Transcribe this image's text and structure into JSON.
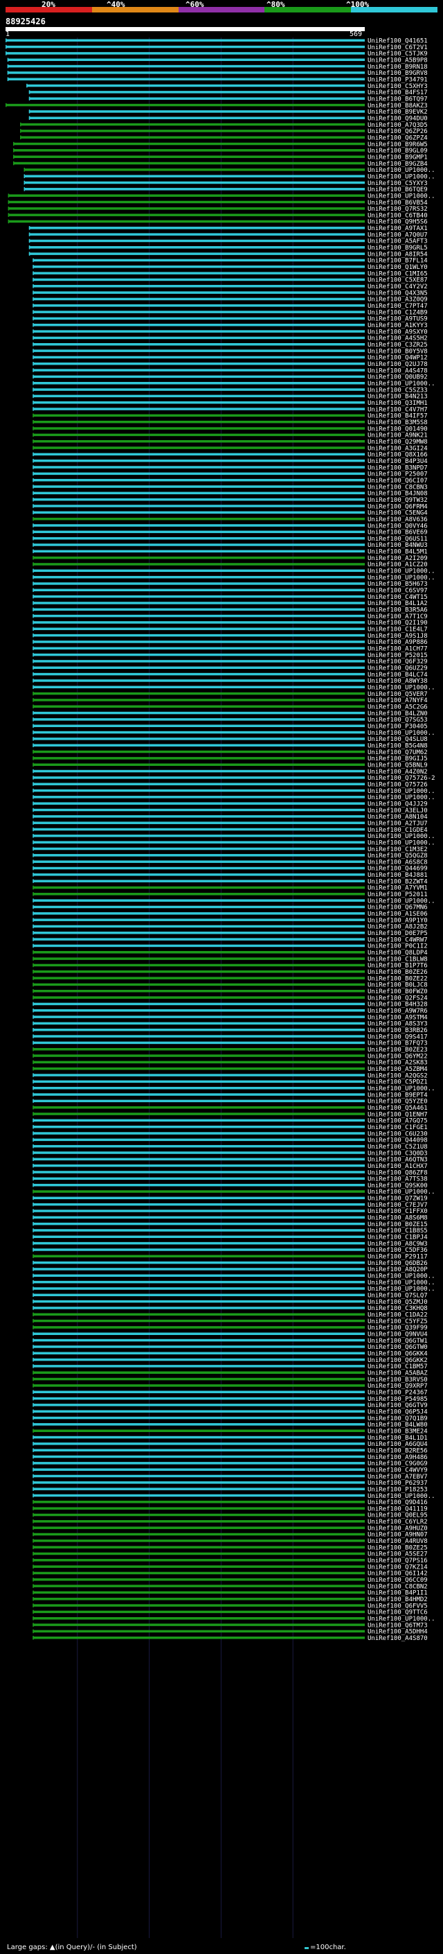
{
  "scale": {
    "labels": [
      "20%",
      "^40%",
      "^60%",
      "^80%",
      "^100%"
    ],
    "colors": [
      "#d82020",
      "#e08818",
      "#9030a8",
      "#1a9a1a",
      "#30c8d8"
    ]
  },
  "query": {
    "id": "88925426",
    "start": "1",
    "end": "569"
  },
  "footer": {
    "large_gaps": "Large gaps: ▲(in Query)/- (in Subject)",
    "legend": "=100char."
  },
  "chart_data": {
    "type": "alignment",
    "query_length": 569,
    "hits": [
      [
        "UniRef100_Q41651",
        1,
        1
      ],
      [
        "UniRef100_C6T2V1",
        1,
        1
      ],
      [
        "UniRef100_C5TJK9",
        1,
        1
      ],
      [
        "UniRef100_A5B9P8",
        4,
        1
      ],
      [
        "UniRef100_B9RN18",
        4,
        1
      ],
      [
        "UniRef100_B9GRV8",
        4,
        1
      ],
      [
        "UniRef100_P34791",
        4,
        1
      ],
      [
        "UniRef100_C5XHY3",
        34,
        1
      ],
      [
        "UniRef100_B4FS17",
        38,
        1
      ],
      [
        "UniRef100_B6TQ97",
        38,
        1
      ],
      [
        "UniRef100_B8AKZ3",
        1,
        0
      ],
      [
        "UniRef100_B9EVK2",
        38,
        1
      ],
      [
        "UniRef100_Q94DU0",
        38,
        1
      ],
      [
        "UniRef100_A7Q3D5",
        24,
        0
      ],
      [
        "UniRef100_Q6ZP26",
        24,
        0
      ],
      [
        "UniRef100_Q6ZPZ4",
        24,
        0
      ],
      [
        "UniRef100_B9R6W5",
        13,
        0
      ],
      [
        "UniRef100_B9GL09",
        13,
        0
      ],
      [
        "UniRef100_B9GMP1",
        13,
        0
      ],
      [
        "UniRef100_B9GZB4",
        13,
        0
      ],
      [
        "UniRef100_UP1000..",
        30,
        0
      ],
      [
        "UniRef100_UP1000..",
        30,
        1
      ],
      [
        "UniRef100_C5YXY3",
        30,
        1
      ],
      [
        "UniRef100_B6TQE9",
        30,
        1
      ],
      [
        "UniRef100_UP1000..",
        5,
        0
      ],
      [
        "UniRef100_B6VB54",
        5,
        0
      ],
      [
        "UniRef100_Q7RS32",
        5,
        0
      ],
      [
        "UniRef100_C6TB40",
        5,
        0
      ],
      [
        "UniRef100_Q9H5S6",
        5,
        0
      ],
      [
        "UniRef100_A9TAX1",
        38,
        1
      ],
      [
        "UniRef100_A7Q0U7",
        38,
        1
      ],
      [
        "UniRef100_A5AFT3",
        38,
        1
      ],
      [
        "UniRef100_B9GRL5",
        38,
        1
      ],
      [
        "UniRef100_A8IR54",
        38,
        1
      ],
      [
        "UniRef100_B7FL14",
        44,
        1
      ],
      [
        "UniRef100_Q1WLY0",
        44,
        1
      ],
      [
        "UniRef100_C1MI65",
        44,
        1
      ],
      [
        "UniRef100_C5XE87",
        44,
        1
      ],
      [
        "UniRef100_C4Y2V2",
        44,
        1
      ],
      [
        "UniRef100_Q4X3N5",
        44,
        1
      ],
      [
        "UniRef100_A3Z0Q9",
        44,
        1
      ],
      [
        "UniRef100_C7PT47",
        44,
        1
      ],
      [
        "UniRef100_C1Z4B9",
        44,
        1
      ],
      [
        "UniRef100_A9TUS9",
        44,
        1
      ],
      [
        "UniRef100_A1KYY3",
        44,
        1
      ],
      [
        "UniRef100_A9SXY0",
        44,
        1
      ],
      [
        "UniRef100_A4S5H2",
        44,
        1
      ],
      [
        "UniRef100_C3ZR25",
        44,
        1
      ],
      [
        "UniRef100_B0Y5V8",
        44,
        1
      ],
      [
        "UniRef100_Q4WP12",
        44,
        1
      ],
      [
        "UniRef100_Q2UJ78",
        44,
        1
      ],
      [
        "UniRef100_A4S478",
        44,
        1
      ],
      [
        "UniRef100_Q0UB92",
        44,
        1
      ],
      [
        "UniRef100_UP1000..",
        44,
        1
      ],
      [
        "UniRef100_C5SZ33",
        44,
        1
      ],
      [
        "UniRef100_B4N213",
        44,
        1
      ],
      [
        "UniRef100_Q3IMH1",
        44,
        1
      ],
      [
        "UniRef100_C4V7H7",
        44,
        1
      ],
      [
        "UniRef100_B4IF57",
        44,
        0
      ],
      [
        "UniRef100_B3M5S8",
        44,
        0
      ],
      [
        "UniRef100_Q01490",
        44,
        0
      ],
      [
        "UniRef100_A9NK21",
        44,
        0
      ],
      [
        "UniRef100_Q29MW8",
        44,
        0
      ],
      [
        "UniRef100_A3GI24",
        44,
        0
      ],
      [
        "UniRef100_Q8X166",
        44,
        1
      ],
      [
        "UniRef100_B4P3U4",
        44,
        1
      ],
      [
        "UniRef100_B3NPD7",
        44,
        1
      ],
      [
        "UniRef100_P25007",
        44,
        1
      ],
      [
        "UniRef100_Q6CI07",
        44,
        1
      ],
      [
        "UniRef100_C8CBN3",
        44,
        1
      ],
      [
        "UniRef100_B4JN08",
        44,
        1
      ],
      [
        "UniRef100_Q9TW32",
        44,
        1
      ],
      [
        "UniRef100_Q6FRM4",
        44,
        1
      ],
      [
        "UniRef100_C5ENG4",
        44,
        1
      ],
      [
        "UniRef100_A8V636",
        44,
        0
      ],
      [
        "UniRef100_Q0VY46",
        44,
        1
      ],
      [
        "UniRef100_B6VE69",
        44,
        1
      ],
      [
        "UniRef100_Q6US11",
        44,
        1
      ],
      [
        "UniRef100_B4NWU3",
        44,
        1
      ],
      [
        "UniRef100_B4L5M1",
        44,
        1
      ],
      [
        "UniRef100_A2I209",
        44,
        0
      ],
      [
        "UniRef100_A1CZ20",
        44,
        0
      ],
      [
        "UniRef100_UP1000..",
        44,
        1
      ],
      [
        "UniRef100_UP1000..",
        44,
        1
      ],
      [
        "UniRef100_B5H673",
        44,
        1
      ],
      [
        "UniRef100_C6SV97",
        44,
        1
      ],
      [
        "UniRef100_C4WT15",
        44,
        1
      ],
      [
        "UniRef100_B4L1A2",
        44,
        1
      ],
      [
        "UniRef100_B3R5A6",
        44,
        1
      ],
      [
        "UniRef100_A7T1C9",
        44,
        1
      ],
      [
        "UniRef100_Q2I190",
        44,
        1
      ],
      [
        "UniRef100_C1E4L7",
        44,
        1
      ],
      [
        "UniRef100_A9S1J8",
        44,
        1
      ],
      [
        "UniRef100_A9P886",
        44,
        1
      ],
      [
        "UniRef100_A1CH77",
        44,
        1
      ],
      [
        "UniRef100_P52015",
        44,
        1
      ],
      [
        "UniRef100_Q6F329",
        44,
        1
      ],
      [
        "UniRef100_Q6UZ29",
        44,
        1
      ],
      [
        "UniRef100_B4LC74",
        44,
        1
      ],
      [
        "UniRef100_A8WY38",
        44,
        1
      ],
      [
        "UniRef100_UP1000..",
        44,
        1
      ],
      [
        "UniRef100_Q5VER7",
        44,
        0
      ],
      [
        "UniRef100_A7NYF4",
        44,
        0
      ],
      [
        "UniRef100_A5C2G6",
        44,
        0
      ],
      [
        "UniRef100_B4LZN0",
        44,
        1
      ],
      [
        "UniRef100_Q7SG53",
        44,
        1
      ],
      [
        "UniRef100_P30405",
        44,
        1
      ],
      [
        "UniRef100_UP1000..",
        44,
        1
      ],
      [
        "UniRef100_Q4SLU8",
        44,
        1
      ],
      [
        "UniRef100_B5G4N8",
        44,
        1
      ],
      [
        "UniRef100_Q7UM62",
        44,
        0
      ],
      [
        "UniRef100_B9GIJ5",
        44,
        0
      ],
      [
        "UniRef100_Q5BNL9",
        44,
        0
      ],
      [
        "UniRef100_A4Z0N2",
        44,
        1
      ],
      [
        "UniRef100_Q75726-2",
        44,
        1
      ],
      [
        "UniRef100_Q75726",
        44,
        1
      ],
      [
        "UniRef100_UP1000..",
        44,
        1
      ],
      [
        "UniRef100_UP1000..",
        44,
        1
      ],
      [
        "UniRef100_Q4JJ29",
        44,
        1
      ],
      [
        "UniRef100_A3ELJ0",
        44,
        1
      ],
      [
        "UniRef100_A8N104",
        44,
        1
      ],
      [
        "UniRef100_A2TJU7",
        44,
        1
      ],
      [
        "UniRef100_C1GDE4",
        44,
        1
      ],
      [
        "UniRef100_UP1000..",
        44,
        1
      ],
      [
        "UniRef100_UP1000..",
        44,
        1
      ],
      [
        "UniRef100_C1M3E2",
        44,
        1
      ],
      [
        "UniRef100_Q5QGZ8",
        44,
        1
      ],
      [
        "UniRef100_A6S8C8",
        44,
        1
      ],
      [
        "UniRef100_Q44699",
        44,
        1
      ],
      [
        "UniRef100_B4J881",
        44,
        1
      ],
      [
        "UniRef100_B2ZWT4",
        44,
        1
      ],
      [
        "UniRef100_A7YVM1",
        44,
        0
      ],
      [
        "UniRef100_P52011",
        44,
        0
      ],
      [
        "UniRef100_UP1000..",
        44,
        1
      ],
      [
        "UniRef100_Q67MN6",
        44,
        1
      ],
      [
        "UniRef100_A1SE06",
        44,
        1
      ],
      [
        "UniRef100_A9P1Y0",
        44,
        1
      ],
      [
        "UniRef100_A8J2B2",
        44,
        1
      ],
      [
        "UniRef100_D0E7P5",
        44,
        1
      ],
      [
        "UniRef100_C4WRW7",
        44,
        1
      ],
      [
        "UniRef100_P0C1I2",
        44,
        1
      ],
      [
        "UniRef100_Q8LDP4",
        44,
        0
      ],
      [
        "UniRef100_C1BLW8",
        44,
        0
      ],
      [
        "UniRef100_B1P7T6",
        44,
        0
      ],
      [
        "UniRef100_B0ZE26",
        44,
        0
      ],
      [
        "UniRef100_B0ZE22",
        44,
        0
      ],
      [
        "UniRef100_B0LJC8",
        44,
        0
      ],
      [
        "UniRef100_B0FWZ0",
        44,
        0
      ],
      [
        "UniRef100_Q2FS24",
        44,
        0
      ],
      [
        "UniRef100_B4H328",
        44,
        1
      ],
      [
        "UniRef100_A9W7R6",
        44,
        1
      ],
      [
        "UniRef100_A9STM4",
        44,
        1
      ],
      [
        "UniRef100_A8S3Y3",
        44,
        1
      ],
      [
        "UniRef100_B3RB26",
        44,
        1
      ],
      [
        "UniRef100_Q9S417",
        44,
        1
      ],
      [
        "UniRef100_B7FQ73",
        44,
        1
      ],
      [
        "UniRef100_B0ZE23",
        44,
        0
      ],
      [
        "UniRef100_Q6YM22",
        44,
        0
      ],
      [
        "UniRef100_A2SK83",
        44,
        0
      ],
      [
        "UniRef100_A5ZBM4",
        44,
        0
      ],
      [
        "UniRef100_A2QGS2",
        44,
        1
      ],
      [
        "UniRef100_C5PDZ1",
        44,
        1
      ],
      [
        "UniRef100_UP1000..",
        44,
        1
      ],
      [
        "UniRef100_B9EPT4",
        44,
        1
      ],
      [
        "UniRef100_Q5YZE0",
        44,
        1
      ],
      [
        "UniRef100_Q5A461",
        44,
        0
      ],
      [
        "UniRef100_Q1ENH7",
        44,
        0
      ],
      [
        "UniRef100_A7GQ75",
        44,
        1
      ],
      [
        "UniRef100_C1FGE1",
        44,
        1
      ],
      [
        "UniRef100_C6U230",
        44,
        1
      ],
      [
        "UniRef100_Q44098",
        44,
        1
      ],
      [
        "UniRef100_C5Z1U8",
        44,
        1
      ],
      [
        "UniRef100_C3Q0D3",
        44,
        1
      ],
      [
        "UniRef100_A6QTN3",
        44,
        1
      ],
      [
        "UniRef100_A1CHX7",
        44,
        1
      ],
      [
        "UniRef100_Q86ZF8",
        44,
        1
      ],
      [
        "UniRef100_A7TS38",
        44,
        1
      ],
      [
        "UniRef100_Q9SK00",
        44,
        1
      ],
      [
        "UniRef100_UP1000..",
        44,
        0
      ],
      [
        "UniRef100_Q7ZW19",
        44,
        1
      ],
      [
        "UniRef100_C7EJV7",
        44,
        1
      ],
      [
        "UniRef100_C1FFX0",
        44,
        1
      ],
      [
        "UniRef100_A8S6M8",
        44,
        1
      ],
      [
        "UniRef100_B0ZE15",
        44,
        1
      ],
      [
        "UniRef100_C1B8S5",
        44,
        1
      ],
      [
        "UniRef100_C1BPJ4",
        44,
        1
      ],
      [
        "UniRef100_A8C9W3",
        44,
        1
      ],
      [
        "UniRef100_C5DF36",
        44,
        1
      ],
      [
        "UniRef100_P29117",
        44,
        0
      ],
      [
        "UniRef100_Q6DB26",
        44,
        1
      ],
      [
        "UniRef100_A8Q20P",
        44,
        1
      ],
      [
        "UniRef100_UP1000..",
        44,
        1
      ],
      [
        "UniRef100_UP1000..",
        44,
        1
      ],
      [
        "UniRef100_UP1000..",
        44,
        1
      ],
      [
        "UniRef100_Q7SLQ7",
        44,
        1
      ],
      [
        "UniRef100_Q5ZMJ0",
        44,
        1
      ],
      [
        "UniRef100_C3KHQ8",
        44,
        1
      ],
      [
        "UniRef100_C1DA22",
        44,
        0
      ],
      [
        "UniRef100_C5YFZ5",
        44,
        0
      ],
      [
        "UniRef100_Q39F99",
        44,
        0
      ],
      [
        "UniRef100_Q9NVU4",
        44,
        1
      ],
      [
        "UniRef100_Q6GTW1",
        44,
        1
      ],
      [
        "UniRef100_Q6GTW0",
        44,
        1
      ],
      [
        "UniRef100_Q6GKK4",
        44,
        1
      ],
      [
        "UniRef100_Q6GKK2",
        44,
        1
      ],
      [
        "UniRef100_C1BM57",
        44,
        1
      ],
      [
        "UniRef100_A5ABAZ",
        44,
        0
      ],
      [
        "UniRef100_B3RVS0",
        44,
        0
      ],
      [
        "UniRef100_Q9XRP7",
        44,
        0
      ],
      [
        "UniRef100_P24367",
        44,
        1
      ],
      [
        "UniRef100_P54985",
        44,
        1
      ],
      [
        "UniRef100_Q6GTV9",
        44,
        1
      ],
      [
        "UniRef100_Q6P5J4",
        44,
        1
      ],
      [
        "UniRef100_Q7Q1B9",
        44,
        1
      ],
      [
        "UniRef100_B4LW80",
        44,
        1
      ],
      [
        "UniRef100_B3ME24",
        44,
        0
      ],
      [
        "UniRef100_B4L1D1",
        44,
        1
      ],
      [
        "UniRef100_A6GQU4",
        44,
        1
      ],
      [
        "UniRef100_B2RE56",
        44,
        1
      ],
      [
        "UniRef100_A9H486",
        44,
        1
      ],
      [
        "UniRef100_C9G0G9",
        44,
        1
      ],
      [
        "UniRef100_C4WVY9",
        44,
        1
      ],
      [
        "UniRef100_A7EBV7",
        44,
        1
      ],
      [
        "UniRef100_P62937",
        44,
        1
      ],
      [
        "UniRef100_P18253",
        44,
        1
      ],
      [
        "UniRef100_UP1000..",
        44,
        1
      ],
      [
        "UniRef100_Q9D416",
        44,
        0
      ],
      [
        "UniRef100_Q41119",
        44,
        0
      ],
      [
        "UniRef100_Q0EL95",
        44,
        0
      ],
      [
        "UniRef100_C6YLR2",
        44,
        0
      ],
      [
        "UniRef100_A9HUZ0",
        44,
        0
      ],
      [
        "UniRef100_A9HN07",
        44,
        0
      ],
      [
        "UniRef100_A4RUV8",
        44,
        0
      ],
      [
        "UniRef100_B0ZE25",
        44,
        0
      ],
      [
        "UniRef100_A5SE27",
        44,
        0
      ],
      [
        "UniRef100_Q7PS16",
        44,
        0
      ],
      [
        "UniRef100_Q7KZ14",
        44,
        0
      ],
      [
        "UniRef100_Q6I142",
        44,
        0
      ],
      [
        "UniRef100_Q6CC09",
        44,
        0
      ],
      [
        "UniRef100_C8CBN2",
        44,
        0
      ],
      [
        "UniRef100_B4P1I1",
        44,
        0
      ],
      [
        "UniRef100_B4HMD2",
        44,
        0
      ],
      [
        "UniRef100_Q6FVV5",
        44,
        0
      ],
      [
        "UniRef100_Q9TTC6",
        44,
        0
      ],
      [
        "UniRef100_UP1000..",
        44,
        0
      ],
      [
        "UniRef100_Q6TM73",
        44,
        0
      ],
      [
        "UniRef100_A5DHH4",
        44,
        0
      ],
      [
        "UniRef100_A4S870",
        44,
        0
      ]
    ]
  }
}
